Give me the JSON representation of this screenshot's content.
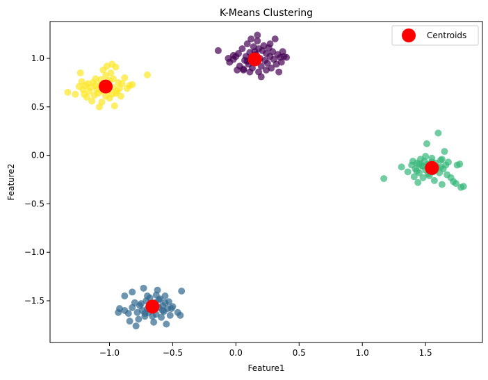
{
  "chart_data": {
    "type": "scatter",
    "title": "K-Means Clustering",
    "xlabel": "Feature1",
    "ylabel": "Feature2",
    "xlim": [
      -1.47,
      1.95
    ],
    "ylim": [
      -1.93,
      1.38
    ],
    "xticks": [
      -1.0,
      -0.5,
      0.0,
      0.5,
      1.0,
      1.5
    ],
    "yticks": [
      -1.5,
      -1.0,
      -0.5,
      0.0,
      0.5,
      1.0
    ],
    "xtick_labels": [
      "−1.0",
      "−0.5",
      "0.0",
      "0.5",
      "1.0",
      "1.5"
    ],
    "ytick_labels": [
      "−1.5",
      "−1.0",
      "−0.5",
      "0.0",
      "0.5",
      "1.0"
    ],
    "grid": false,
    "legend": {
      "placement": "top-right",
      "entries": [
        "Centroids"
      ]
    },
    "series": [
      {
        "color": "#440154",
        "alpha": 0.7,
        "points": [
          [
            -0.14,
            1.08
          ],
          [
            -0.06,
            1.0
          ],
          [
            -0.05,
            0.96
          ],
          [
            -0.02,
            0.99
          ],
          [
            0.0,
            1.02
          ],
          [
            0.02,
            1.05
          ],
          [
            0.03,
            0.92
          ],
          [
            0.05,
            1.1
          ],
          [
            0.06,
            0.88
          ],
          [
            0.07,
            0.98
          ],
          [
            0.08,
            1.02
          ],
          [
            0.09,
            1.15
          ],
          [
            0.1,
            0.94
          ],
          [
            0.11,
            1.06
          ],
          [
            0.12,
            1.0
          ],
          [
            0.13,
            0.9
          ],
          [
            0.14,
            1.12
          ],
          [
            0.15,
            0.96
          ],
          [
            0.16,
            1.04
          ],
          [
            0.17,
            1.18
          ],
          [
            0.18,
            0.86
          ],
          [
            0.19,
            1.0
          ],
          [
            0.2,
            0.92
          ],
          [
            0.21,
            1.08
          ],
          [
            0.22,
            1.13
          ],
          [
            0.23,
            0.98
          ],
          [
            0.24,
            1.05
          ],
          [
            0.25,
            0.95
          ],
          [
            0.26,
            1.11
          ],
          [
            0.27,
            1.02
          ],
          [
            0.28,
            0.9
          ],
          [
            0.29,
            1.07
          ],
          [
            0.3,
            0.99
          ],
          [
            0.31,
            1.2
          ],
          [
            0.32,
            0.94
          ],
          [
            0.33,
            1.04
          ],
          [
            0.34,
            0.86
          ],
          [
            0.35,
            1.01
          ],
          [
            0.36,
            0.96
          ],
          [
            0.37,
            1.07
          ],
          [
            0.38,
            1.02
          ],
          [
            0.4,
            1.01
          ],
          [
            0.17,
            1.24
          ],
          [
            0.2,
            0.81
          ],
          [
            0.06,
            0.89
          ],
          [
            0.12,
            1.2
          ],
          [
            0.01,
            0.88
          ],
          [
            -0.02,
            1.03
          ],
          [
            0.09,
            0.97
          ],
          [
            0.18,
            1.1
          ],
          [
            0.27,
            1.15
          ],
          [
            0.11,
            0.86
          ],
          [
            0.24,
            0.88
          ],
          [
            0.15,
            1.07
          ]
        ]
      },
      {
        "color": "#31688e",
        "alpha": 0.7,
        "points": [
          [
            -0.93,
            -1.62
          ],
          [
            -0.92,
            -1.58
          ],
          [
            -0.88,
            -1.45
          ],
          [
            -0.85,
            -1.63
          ],
          [
            -0.84,
            -1.71
          ],
          [
            -0.82,
            -1.41
          ],
          [
            -0.8,
            -1.52
          ],
          [
            -0.79,
            -1.76
          ],
          [
            -0.77,
            -1.69
          ],
          [
            -0.76,
            -1.55
          ],
          [
            -0.74,
            -1.6
          ],
          [
            -0.73,
            -1.37
          ],
          [
            -0.72,
            -1.66
          ],
          [
            -0.71,
            -1.5
          ],
          [
            -0.7,
            -1.58
          ],
          [
            -0.69,
            -1.62
          ],
          [
            -0.68,
            -1.47
          ],
          [
            -0.67,
            -1.54
          ],
          [
            -0.66,
            -1.66
          ],
          [
            -0.65,
            -1.59
          ],
          [
            -0.64,
            -1.52
          ],
          [
            -0.63,
            -1.64
          ],
          [
            -0.62,
            -1.39
          ],
          [
            -0.61,
            -1.57
          ],
          [
            -0.6,
            -1.48
          ],
          [
            -0.59,
            -1.67
          ],
          [
            -0.58,
            -1.55
          ],
          [
            -0.57,
            -1.61
          ],
          [
            -0.56,
            -1.45
          ],
          [
            -0.55,
            -1.74
          ],
          [
            -0.54,
            -1.58
          ],
          [
            -0.53,
            -1.51
          ],
          [
            -0.52,
            -1.65
          ],
          [
            -0.5,
            -1.56
          ],
          [
            -0.46,
            -1.62
          ],
          [
            -0.44,
            -1.65
          ],
          [
            -0.43,
            -1.4
          ],
          [
            -0.88,
            -1.6
          ],
          [
            -0.78,
            -1.62
          ],
          [
            -0.7,
            -1.45
          ],
          [
            -0.61,
            -1.49
          ],
          [
            -0.58,
            -1.6
          ],
          [
            -0.65,
            -1.72
          ],
          [
            -0.75,
            -1.53
          ],
          [
            -0.82,
            -1.57
          ],
          [
            -0.68,
            -1.57
          ],
          [
            -0.56,
            -1.52
          ],
          [
            -0.63,
            -1.44
          ],
          [
            -0.72,
            -1.63
          ],
          [
            -0.51,
            -1.58
          ]
        ]
      },
      {
        "color": "#35b779",
        "alpha": 0.7,
        "points": [
          [
            1.17,
            -0.24
          ],
          [
            1.31,
            -0.12
          ],
          [
            1.36,
            -0.17
          ],
          [
            1.39,
            -0.1
          ],
          [
            1.4,
            -0.06
          ],
          [
            1.41,
            -0.22
          ],
          [
            1.42,
            -0.14
          ],
          [
            1.43,
            -0.08
          ],
          [
            1.44,
            -0.28
          ],
          [
            1.45,
            -0.18
          ],
          [
            1.46,
            -0.04
          ],
          [
            1.47,
            -0.11
          ],
          [
            1.48,
            -0.23
          ],
          [
            1.49,
            -0.06
          ],
          [
            1.5,
            -0.15
          ],
          [
            1.51,
            0.12
          ],
          [
            1.52,
            -0.09
          ],
          [
            1.53,
            -0.21
          ],
          [
            1.54,
            -0.13
          ],
          [
            1.55,
            -0.03
          ],
          [
            1.56,
            -0.17
          ],
          [
            1.57,
            -0.26
          ],
          [
            1.58,
            -0.08
          ],
          [
            1.59,
            -0.12
          ],
          [
            1.6,
            0.23
          ],
          [
            1.61,
            -0.18
          ],
          [
            1.62,
            -0.05
          ],
          [
            1.63,
            -0.3
          ],
          [
            1.64,
            -0.14
          ],
          [
            1.65,
            0.04
          ],
          [
            1.66,
            -0.1
          ],
          [
            1.67,
            -0.2
          ],
          [
            1.68,
            -0.07
          ],
          [
            1.7,
            -0.23
          ],
          [
            1.72,
            -0.27
          ],
          [
            1.74,
            -0.29
          ],
          [
            1.75,
            -0.1
          ],
          [
            1.77,
            -0.09
          ],
          [
            1.78,
            -0.33
          ],
          [
            1.8,
            -0.32
          ],
          [
            1.43,
            -0.16
          ],
          [
            1.48,
            -0.11
          ],
          [
            1.52,
            -0.19
          ],
          [
            1.58,
            -0.15
          ],
          [
            1.45,
            -0.09
          ],
          [
            1.55,
            -0.07
          ],
          [
            1.62,
            -0.12
          ],
          [
            1.5,
            -0.01
          ],
          [
            1.57,
            -0.14
          ],
          [
            1.63,
            -0.04
          ]
        ]
      },
      {
        "color": "#fde725",
        "alpha": 0.7,
        "points": [
          [
            -1.33,
            0.65
          ],
          [
            -1.27,
            0.63
          ],
          [
            -1.24,
            0.71
          ],
          [
            -1.23,
            0.85
          ],
          [
            -1.22,
            0.76
          ],
          [
            -1.21,
            0.68
          ],
          [
            -1.19,
            0.72
          ],
          [
            -1.18,
            0.6
          ],
          [
            -1.16,
            0.66
          ],
          [
            -1.15,
            0.7
          ],
          [
            -1.14,
            0.56
          ],
          [
            -1.13,
            0.75
          ],
          [
            -1.12,
            0.62
          ],
          [
            -1.11,
            0.79
          ],
          [
            -1.1,
            0.68
          ],
          [
            -1.09,
            0.64
          ],
          [
            -1.08,
            0.5
          ],
          [
            -1.07,
            0.73
          ],
          [
            -1.06,
            0.66
          ],
          [
            -1.05,
            0.88
          ],
          [
            -1.04,
            0.71
          ],
          [
            -1.03,
            0.61
          ],
          [
            -1.02,
            0.92
          ],
          [
            -1.01,
            0.67
          ],
          [
            -1.0,
            0.77
          ],
          [
            -0.99,
            0.85
          ],
          [
            -0.98,
            0.63
          ],
          [
            -0.97,
            0.7
          ],
          [
            -0.96,
            0.51
          ],
          [
            -0.95,
            0.91
          ],
          [
            -0.94,
            0.66
          ],
          [
            -0.93,
            0.75
          ],
          [
            -0.92,
            0.69
          ],
          [
            -0.91,
            0.61
          ],
          [
            -0.9,
            0.74
          ],
          [
            -0.88,
            0.8
          ],
          [
            -0.86,
            0.69
          ],
          [
            -0.84,
            0.72
          ],
          [
            -0.82,
            0.73
          ],
          [
            -0.7,
            0.83
          ],
          [
            -1.2,
            0.63
          ],
          [
            -1.07,
            0.78
          ],
          [
            -1.0,
            0.59
          ],
          [
            -0.98,
            0.94
          ],
          [
            -1.11,
            0.72
          ],
          [
            -1.03,
            0.82
          ],
          [
            -0.95,
            0.64
          ],
          [
            -1.17,
            0.74
          ],
          [
            -1.06,
            0.55
          ],
          [
            -0.97,
            0.79
          ]
        ]
      }
    ],
    "centroids": {
      "name": "Centroids",
      "color": "#ff0000",
      "points": [
        [
          0.15,
          0.99
        ],
        [
          -0.66,
          -1.56
        ],
        [
          1.55,
          -0.13
        ],
        [
          -1.03,
          0.71
        ]
      ]
    }
  }
}
